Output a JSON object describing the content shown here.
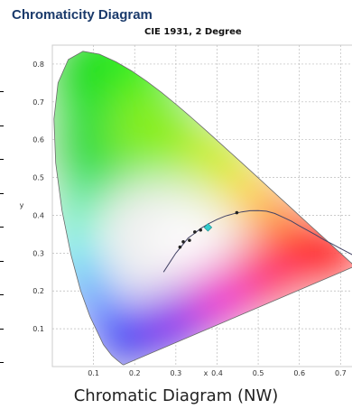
{
  "header": {
    "title": "Chromaticity Diagram",
    "subtitle": "CIE 1931, 2 Degree"
  },
  "caption": "Chromatic Diagram (NW)",
  "chart_data": {
    "type": "scatter",
    "title": "Chromaticity Diagram",
    "subtitle": "CIE 1931, 2 Degree",
    "xlabel": "x",
    "ylabel": "y",
    "xlim": [
      0.0,
      0.73
    ],
    "ylim": [
      0.0,
      0.85
    ],
    "x_ticks": [
      "0.1",
      "0.2",
      "0.3",
      "0.4",
      "0.5",
      "0.6",
      "0.7"
    ],
    "y_ticks": [
      "0.1",
      "0.2",
      "0.3",
      "0.4",
      "0.5",
      "0.6",
      "0.7",
      "0.8"
    ],
    "grid": true,
    "spectral_locus": [
      [
        0.1741,
        0.005
      ],
      [
        0.1738,
        0.0049
      ],
      [
        0.1733,
        0.0048
      ],
      [
        0.1726,
        0.0048
      ],
      [
        0.1714,
        0.0051
      ],
      [
        0.1689,
        0.0069
      ],
      [
        0.1644,
        0.0109
      ],
      [
        0.1566,
        0.0177
      ],
      [
        0.144,
        0.0297
      ],
      [
        0.1241,
        0.0578
      ],
      [
        0.0913,
        0.1327
      ],
      [
        0.0687,
        0.2007
      ],
      [
        0.0454,
        0.295
      ],
      [
        0.0235,
        0.4127
      ],
      [
        0.0082,
        0.5384
      ],
      [
        0.0039,
        0.6548
      ],
      [
        0.0139,
        0.7502
      ],
      [
        0.0389,
        0.812
      ],
      [
        0.0743,
        0.8338
      ],
      [
        0.1142,
        0.8262
      ],
      [
        0.1547,
        0.8059
      ],
      [
        0.1929,
        0.7816
      ],
      [
        0.2296,
        0.7543
      ],
      [
        0.2658,
        0.7243
      ],
      [
        0.3016,
        0.6923
      ],
      [
        0.3373,
        0.6589
      ],
      [
        0.3731,
        0.6245
      ],
      [
        0.4087,
        0.5896
      ],
      [
        0.4441,
        0.5547
      ],
      [
        0.4788,
        0.5202
      ],
      [
        0.5125,
        0.4866
      ],
      [
        0.5448,
        0.4544
      ],
      [
        0.5752,
        0.4242
      ],
      [
        0.6029,
        0.3965
      ],
      [
        0.627,
        0.3725
      ],
      [
        0.6482,
        0.3514
      ],
      [
        0.6658,
        0.334
      ],
      [
        0.6801,
        0.3197
      ],
      [
        0.6915,
        0.3083
      ],
      [
        0.7006,
        0.2993
      ],
      [
        0.7079,
        0.292
      ],
      [
        0.714,
        0.2859
      ],
      [
        0.719,
        0.2809
      ],
      [
        0.723,
        0.277
      ],
      [
        0.726,
        0.274
      ],
      [
        0.7283,
        0.2717
      ],
      [
        0.73,
        0.27
      ],
      [
        0.732,
        0.268
      ],
      [
        0.7334,
        0.2666
      ],
      [
        0.7347,
        0.2653
      ]
    ],
    "planckian_locus": [
      [
        0.27,
        0.25
      ],
      [
        0.285,
        0.275
      ],
      [
        0.3,
        0.3
      ],
      [
        0.315,
        0.32
      ],
      [
        0.33,
        0.34
      ],
      [
        0.345,
        0.352
      ],
      [
        0.36,
        0.365
      ],
      [
        0.38,
        0.378
      ],
      [
        0.4,
        0.389
      ],
      [
        0.42,
        0.398
      ],
      [
        0.44,
        0.404
      ],
      [
        0.46,
        0.409
      ],
      [
        0.48,
        0.412
      ],
      [
        0.5,
        0.4125
      ],
      [
        0.52,
        0.411
      ],
      [
        0.54,
        0.405
      ],
      [
        0.56,
        0.395
      ],
      [
        0.58,
        0.385
      ],
      [
        0.6,
        0.372
      ],
      [
        0.62,
        0.36
      ],
      [
        0.64,
        0.348
      ],
      [
        0.66,
        0.335
      ],
      [
        0.68,
        0.324
      ],
      [
        0.7,
        0.312
      ],
      [
        0.73,
        0.295
      ]
    ],
    "points": [
      {
        "x": 0.31,
        "y": 0.316,
        "color": "#222222"
      },
      {
        "x": 0.318,
        "y": 0.33,
        "color": "#222222"
      },
      {
        "x": 0.333,
        "y": 0.334,
        "color": "#222222"
      },
      {
        "x": 0.346,
        "y": 0.356,
        "color": "#222222"
      },
      {
        "x": 0.36,
        "y": 0.361,
        "color": "#222222"
      },
      {
        "x": 0.448,
        "y": 0.407,
        "color": "#222222"
      }
    ],
    "marker": {
      "x": 0.378,
      "y": 0.368,
      "color": "#33cccc"
    }
  }
}
